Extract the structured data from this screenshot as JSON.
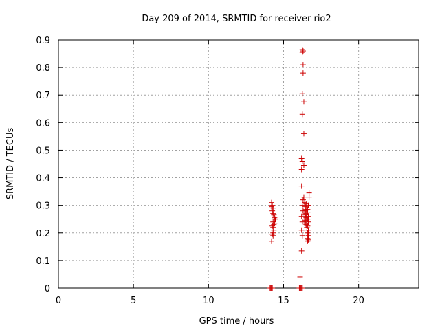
{
  "chart_data": {
    "type": "scatter",
    "title": "Day 209 of 2014, SRMTID for receiver rio2",
    "xlabel": "GPS time / hours",
    "ylabel": "SRMTID / TECUs",
    "xlim": [
      0,
      24
    ],
    "ylim": [
      0,
      0.9
    ],
    "xticks": [
      "0",
      "5",
      "10",
      "15",
      "20"
    ],
    "yticks": [
      "0",
      "0.1",
      "0.2",
      "0.3",
      "0.4",
      "0.5",
      "0.6",
      "0.7",
      "0.8",
      "0.9"
    ],
    "grid": true,
    "marker": "+",
    "color": "#cc0000",
    "series": [
      {
        "name": "SRMTID",
        "points": [
          [
            14.1,
            0
          ],
          [
            14.15,
            0
          ],
          [
            14.2,
            0
          ],
          [
            14.25,
            0
          ],
          [
            16.05,
            0
          ],
          [
            16.1,
            0
          ],
          [
            16.15,
            0
          ],
          [
            16.2,
            0
          ],
          [
            16.25,
            0
          ],
          [
            14.2,
            0.31
          ],
          [
            14.25,
            0.3
          ],
          [
            14.2,
            0.295
          ],
          [
            14.3,
            0.29
          ],
          [
            14.25,
            0.28
          ],
          [
            14.3,
            0.27
          ],
          [
            14.35,
            0.265
          ],
          [
            14.4,
            0.255
          ],
          [
            14.45,
            0.25
          ],
          [
            14.3,
            0.24
          ],
          [
            14.4,
            0.235
          ],
          [
            14.35,
            0.23
          ],
          [
            14.25,
            0.225
          ],
          [
            14.3,
            0.22
          ],
          [
            14.35,
            0.21
          ],
          [
            14.3,
            0.2
          ],
          [
            14.25,
            0.195
          ],
          [
            14.3,
            0.19
          ],
          [
            14.2,
            0.17
          ],
          [
            16.1,
            0.04
          ],
          [
            16.2,
            0.135
          ],
          [
            16.25,
            0.19
          ],
          [
            16.2,
            0.21
          ],
          [
            16.25,
            0.24
          ],
          [
            16.2,
            0.26
          ],
          [
            16.3,
            0.28
          ],
          [
            16.25,
            0.3
          ],
          [
            16.3,
            0.32
          ],
          [
            16.35,
            0.33
          ],
          [
            16.2,
            0.37
          ],
          [
            16.2,
            0.43
          ],
          [
            16.35,
            0.445
          ],
          [
            16.25,
            0.46
          ],
          [
            16.2,
            0.47
          ],
          [
            16.35,
            0.56
          ],
          [
            16.25,
            0.63
          ],
          [
            16.35,
            0.675
          ],
          [
            16.25,
            0.705
          ],
          [
            16.3,
            0.78
          ],
          [
            16.3,
            0.81
          ],
          [
            16.25,
            0.855
          ],
          [
            16.3,
            0.86
          ],
          [
            16.25,
            0.865
          ],
          [
            16.4,
            0.235
          ],
          [
            16.45,
            0.245
          ],
          [
            16.4,
            0.25
          ],
          [
            16.5,
            0.255
          ],
          [
            16.45,
            0.265
          ],
          [
            16.4,
            0.275
          ],
          [
            16.5,
            0.285
          ],
          [
            16.45,
            0.295
          ],
          [
            16.5,
            0.305
          ],
          [
            16.4,
            0.31
          ],
          [
            16.55,
            0.22
          ],
          [
            16.5,
            0.23
          ],
          [
            16.45,
            0.24
          ],
          [
            16.55,
            0.26
          ],
          [
            16.5,
            0.27
          ],
          [
            16.45,
            0.28
          ],
          [
            16.6,
            0.285
          ],
          [
            16.6,
            0.17
          ],
          [
            16.65,
            0.175
          ],
          [
            16.6,
            0.18
          ],
          [
            16.65,
            0.19
          ],
          [
            16.6,
            0.2
          ],
          [
            16.65,
            0.21
          ],
          [
            16.6,
            0.225
          ],
          [
            16.65,
            0.24
          ],
          [
            16.6,
            0.25
          ],
          [
            16.65,
            0.26
          ],
          [
            16.6,
            0.275
          ],
          [
            16.65,
            0.3
          ],
          [
            16.7,
            0.33
          ],
          [
            16.7,
            0.345
          ]
        ]
      }
    ]
  }
}
